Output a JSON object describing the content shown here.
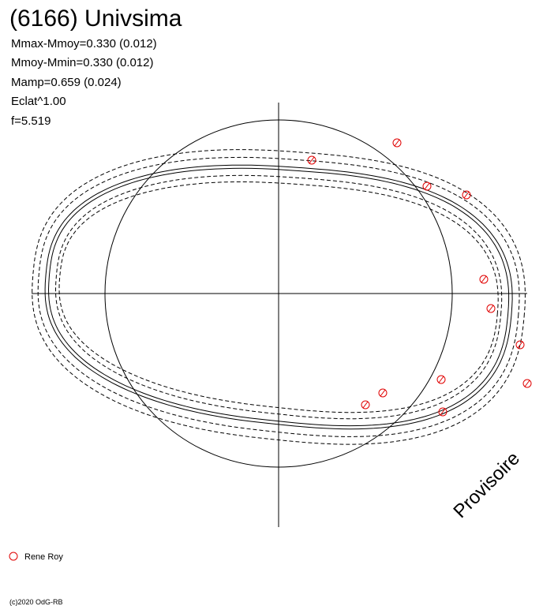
{
  "header": {
    "title": "(6166) Univsima",
    "stats": [
      "Mmax-Mmoy=0.330 (0.012)",
      "Mmoy-Mmin=0.330 (0.012)",
      "Mamp=0.659 (0.024)",
      "Eclat^1.00",
      "f=5.519"
    ]
  },
  "watermark": "Provisoire",
  "legend": {
    "observer": "Rene Roy"
  },
  "footer": "(c)2020 OdG-RB"
}
